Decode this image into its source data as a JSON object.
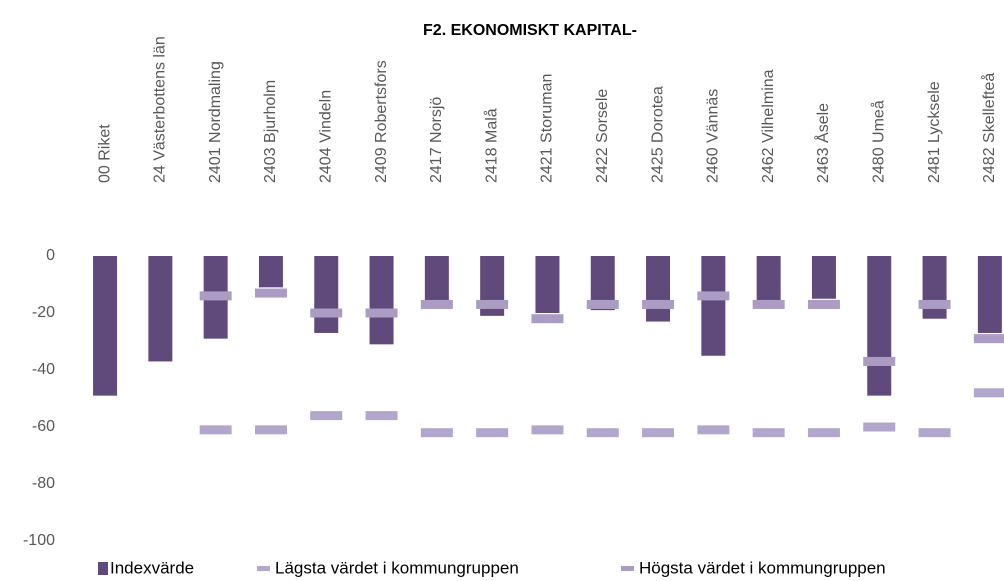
{
  "chart_data": {
    "type": "bar",
    "title": "F2. EKONOMISKT KAPITAL-",
    "categories": [
      "00 Riket",
      "24 Västerbottens län",
      "2401 Nordmaling",
      "2403 Bjurholm",
      "2404 Vindeln",
      "2409 Robertsfors",
      "2417 Norsjö",
      "2418 Malå",
      "2421 Storuman",
      "2422 Sorsele",
      "2425 Dorotea",
      "2460 Vännäs",
      "2462 Vilhelmina",
      "2463 Åsele",
      "2480 Umeå",
      "2481 Lycksele",
      "2482 Skellefteå"
    ],
    "series": [
      {
        "name": "Indexvärde",
        "color": "#604a7b",
        "values": [
          -49,
          -37,
          -29,
          -11,
          -27,
          -31,
          -17,
          -21,
          -20,
          -19,
          -23,
          -35,
          -16,
          -15,
          -49,
          -22,
          -27
        ]
      },
      {
        "name": "Lägsta värdet i kommungruppen",
        "color": "#b3a6cc",
        "values": [
          null,
          null,
          -61,
          -61,
          -56,
          -56,
          -62,
          -62,
          -61,
          -62,
          -62,
          -61,
          -62,
          -62,
          -60,
          -62,
          -48
        ]
      },
      {
        "name": "Högsta värdet i kommungruppen",
        "color": "#ab9cc4",
        "values": [
          null,
          null,
          -14,
          -13,
          -20,
          -20,
          -17,
          -17,
          -22,
          -17,
          -17,
          -14,
          -17,
          -17,
          -37,
          -17,
          -29
        ]
      }
    ],
    "ylim": [
      -100,
      0
    ],
    "yticks": [
      0,
      -20,
      -40,
      -60,
      -80,
      -100
    ]
  }
}
